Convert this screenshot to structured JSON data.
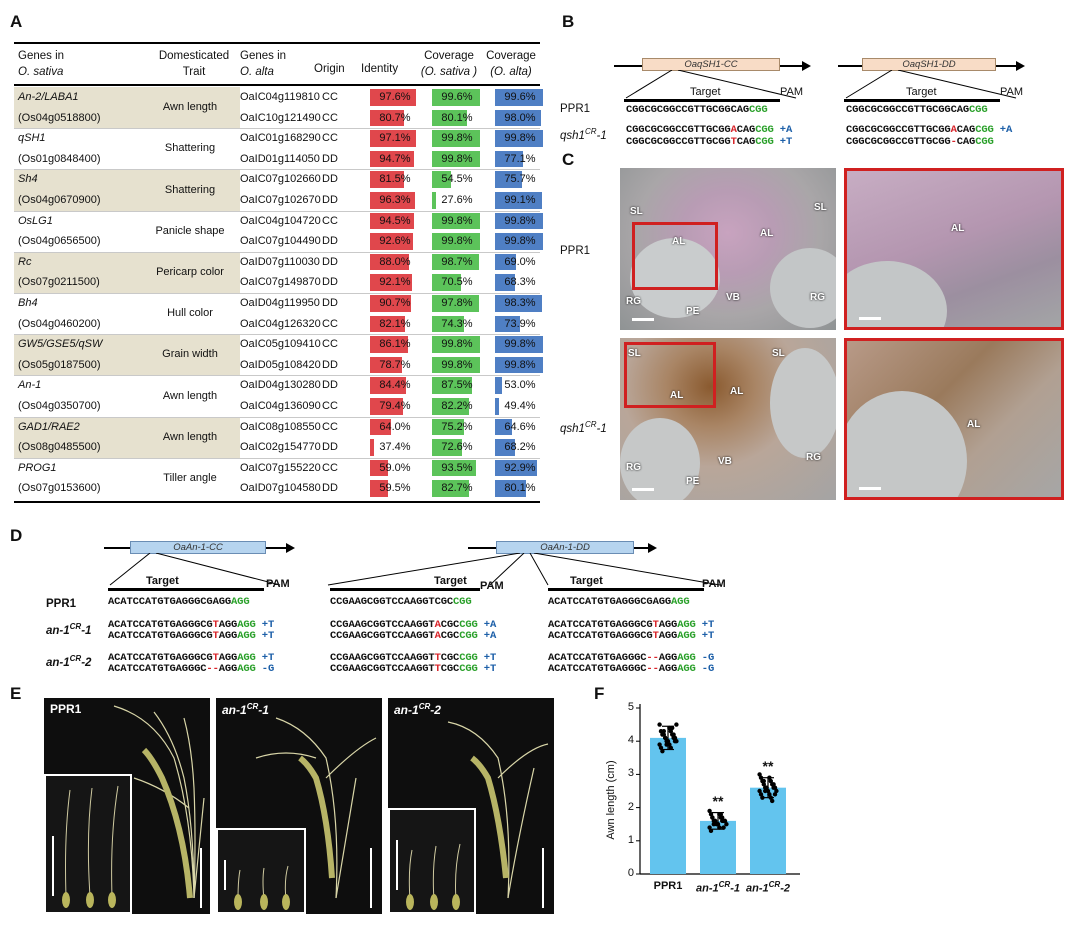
{
  "panels": {
    "A": "A",
    "B": "B",
    "C": "C",
    "D": "D",
    "E": "E",
    "F": "F"
  },
  "tableA": {
    "headers": {
      "genes_sativa_1": "Genes in",
      "genes_sativa_2": "O. sativa",
      "trait_1": "Domesticated",
      "trait_2": "Trait",
      "genes_alta_1": "Genes in",
      "genes_alta_2": "O. alta",
      "origin": "Origin",
      "identity": "Identity",
      "cov_s_1": "Coverage",
      "cov_s_2": "(O. sativa )",
      "cov_a_1": "Coverage",
      "cov_a_2": "(O. alta)"
    },
    "rows": [
      {
        "gene": "An-2/LABA1",
        "gene_italic": true,
        "trait": "Awn length",
        "alta": "OaIC04g119810",
        "origin": "CC",
        "identity": "97.6%",
        "id_val": 97.6,
        "cov_s": "99.6%",
        "cs_val": 99.6,
        "cov_a": "99.6%",
        "ca_val": 99.6,
        "band": true
      },
      {
        "gene": "(Os04g0518800)",
        "gene_italic": false,
        "trait": "",
        "alta": "OaIC10g121490",
        "origin": "CC",
        "identity": "80.7%",
        "id_val": 80.7,
        "cov_s": "80.1%",
        "cs_val": 80.1,
        "cov_a": "98.0%",
        "ca_val": 98.0,
        "band": true
      },
      {
        "gene": "qSH1",
        "gene_italic": true,
        "trait": "Shattering",
        "alta": "OaIC01g168290",
        "origin": "CC",
        "identity": "97.1%",
        "id_val": 97.1,
        "cov_s": "99.8%",
        "cs_val": 99.8,
        "cov_a": "99.8%",
        "ca_val": 99.8,
        "band": false
      },
      {
        "gene": "(Os01g0848400)",
        "gene_italic": false,
        "trait": "",
        "alta": "OaID01g114050",
        "origin": "DD",
        "identity": "94.7%",
        "id_val": 94.7,
        "cov_s": "99.8%",
        "cs_val": 99.8,
        "cov_a": "77.1%",
        "ca_val": 77.1,
        "band": false
      },
      {
        "gene": "Sh4",
        "gene_italic": true,
        "trait": "Shattering",
        "alta": "OaIC07g102660",
        "origin": "DD",
        "identity": "81.5%",
        "id_val": 81.5,
        "cov_s": "54.5%",
        "cs_val": 54.5,
        "cov_a": "75.7%",
        "ca_val": 75.7,
        "band": true
      },
      {
        "gene": "(Os04g0670900)",
        "gene_italic": false,
        "trait": "",
        "alta": "OaIC07g102670",
        "origin": "DD",
        "identity": "96.3%",
        "id_val": 96.3,
        "cov_s": "27.6%",
        "cs_val": 27.6,
        "cov_a": "99.1%",
        "ca_val": 99.1,
        "band": true
      },
      {
        "gene": "OsLG1",
        "gene_italic": true,
        "trait": "Panicle shape",
        "alta": "OaIC04g104720",
        "origin": "CC",
        "identity": "94.5%",
        "id_val": 94.5,
        "cov_s": "99.8%",
        "cs_val": 99.8,
        "cov_a": "99.8%",
        "ca_val": 99.8,
        "band": false
      },
      {
        "gene": "(Os04g0656500)",
        "gene_italic": false,
        "trait": "",
        "alta": "OaIC07g104490",
        "origin": "DD",
        "identity": "92.6%",
        "id_val": 92.6,
        "cov_s": "99.8%",
        "cs_val": 99.8,
        "cov_a": "99.8%",
        "ca_val": 99.8,
        "band": false
      },
      {
        "gene": "Rc",
        "gene_italic": true,
        "trait": "Pericarp color",
        "alta": "OaID07g110030",
        "origin": "DD",
        "identity": "88.0%",
        "id_val": 88.0,
        "cov_s": "98.7%",
        "cs_val": 98.7,
        "cov_a": "69.0%",
        "ca_val": 69.0,
        "band": true
      },
      {
        "gene": "(Os07g0211500)",
        "gene_italic": false,
        "trait": "",
        "alta": "OaIC07g149870",
        "origin": "DD",
        "identity": "92.1%",
        "id_val": 92.1,
        "cov_s": "70.5%",
        "cs_val": 70.5,
        "cov_a": "68.3%",
        "ca_val": 68.3,
        "band": true
      },
      {
        "gene": "Bh4",
        "gene_italic": true,
        "trait": "Hull color",
        "alta": "OaID04g119950",
        "origin": "DD",
        "identity": "90.7%",
        "id_val": 90.7,
        "cov_s": "97.8%",
        "cs_val": 97.8,
        "cov_a": "98.3%",
        "ca_val": 98.3,
        "band": false
      },
      {
        "gene": "(Os04g0460200)",
        "gene_italic": false,
        "trait": "",
        "alta": "OaIC04g126320",
        "origin": "CC",
        "identity": "82.1%",
        "id_val": 82.1,
        "cov_s": "74.3%",
        "cs_val": 74.3,
        "cov_a": "73.9%",
        "ca_val": 73.9,
        "band": false
      },
      {
        "gene": "GW5/GSE5/qSW",
        "gene_italic": true,
        "trait": "Grain width",
        "alta": "OaIC05g109410",
        "origin": "CC",
        "identity": "86.1%",
        "id_val": 86.1,
        "cov_s": "99.8%",
        "cs_val": 99.8,
        "cov_a": "99.8%",
        "ca_val": 99.8,
        "band": true
      },
      {
        "gene": "(Os05g0187500)",
        "gene_italic": false,
        "trait": "",
        "alta": "OaID05g108420",
        "origin": "DD",
        "identity": "78.7%",
        "id_val": 78.7,
        "cov_s": "99.8%",
        "cs_val": 99.8,
        "cov_a": "99.8%",
        "ca_val": 99.8,
        "band": true
      },
      {
        "gene": "An-1",
        "gene_italic": true,
        "trait": "Awn length",
        "alta": "OaID04g130280",
        "origin": "DD",
        "identity": "84.4%",
        "id_val": 84.4,
        "cov_s": "87.5%",
        "cs_val": 87.5,
        "cov_a": "53.0%",
        "ca_val": 53.0,
        "band": false
      },
      {
        "gene": "(Os04g0350700)",
        "gene_italic": false,
        "trait": "",
        "alta": "OaIC04g136090",
        "origin": "CC",
        "identity": "79.4%",
        "id_val": 79.4,
        "cov_s": "82.2%",
        "cs_val": 82.2,
        "cov_a": "49.4%",
        "ca_val": 49.4,
        "band": false
      },
      {
        "gene": "GAD1/RAE2",
        "gene_italic": true,
        "trait": "Awn length",
        "alta": "OaIC08g108550",
        "origin": "CC",
        "identity": "64.0%",
        "id_val": 64.0,
        "cov_s": "75.2%",
        "cs_val": 75.2,
        "cov_a": "64.6%",
        "ca_val": 64.6,
        "band": true
      },
      {
        "gene": "(Os08g0485500)",
        "gene_italic": false,
        "trait": "",
        "alta": "OaIC02g154770",
        "origin": "DD",
        "identity": "37.4%",
        "id_val": 37.4,
        "cov_s": "72.6%",
        "cs_val": 72.6,
        "cov_a": "68.2%",
        "ca_val": 68.2,
        "band": true
      },
      {
        "gene": "PROG1",
        "gene_italic": true,
        "trait": "Tiller angle",
        "alta": "OaIC07g155220",
        "origin": "CC",
        "identity": "59.0%",
        "id_val": 59.0,
        "cov_s": "93.5%",
        "cs_val": 93.5,
        "cov_a": "92.9%",
        "ca_val": 92.9,
        "band": false
      },
      {
        "gene": "(Os07g0153600)",
        "gene_italic": false,
        "trait": "",
        "alta": "OaID07g104580",
        "origin": "DD",
        "identity": "59.5%",
        "id_val": 59.5,
        "cov_s": "82.7%",
        "cs_val": 82.7,
        "cov_a": "80.1%",
        "ca_val": 80.1,
        "band": false
      }
    ],
    "colors": {
      "identity": "#e0474c",
      "cov_sativa": "#5cc35a",
      "cov_alta": "#4f7fc4",
      "band": "#e6e1cf"
    }
  },
  "panelB": {
    "gene_cc": "OaqSH1-CC",
    "gene_dd": "OaqSH1-DD",
    "target": "Target",
    "pam": "PAM",
    "ppr1": "PPR1",
    "mut_prefix": "qsh1",
    "mut_sup": "CR",
    "mut_suffix": "-1",
    "cc": {
      "wt": {
        "a": "CGGCGCGGCCGTTGCGGCAG",
        "pam": "CGG"
      },
      "m1": {
        "a": "CGGCGCGGCCGTTGCGG",
        "ins": "A",
        "b": "CAG",
        "pam": "CGG",
        "note": " +A"
      },
      "m2": {
        "a": "CGGCGCGGCCGTTGCGG",
        "ins": "T",
        "b": "CAG",
        "pam": "CGG",
        "note": " +T"
      }
    },
    "dd": {
      "wt": {
        "a": "CGGCGCGGCCGTTGCGGCAG",
        "pam": "CGG"
      },
      "m1": {
        "a": "CGGCGCGGCCGTTGCGG",
        "ins": "A",
        "b": "CAG",
        "pam": "CGG",
        "note": " +A"
      },
      "m2": {
        "a": "CGGCGCGGCCGTTGCGG",
        "ins": "-",
        "b": "CAG",
        "pam": "CGG",
        "note": ""
      }
    }
  },
  "panelC": {
    "row1": "PPR1",
    "row2_prefix": "qsh1",
    "row2_sup": "CR",
    "row2_suffix": "-1",
    "labels": {
      "SL": "SL",
      "AL": "AL",
      "RG": "RG",
      "PE": "PE",
      "VB": "VB"
    }
  },
  "panelD": {
    "gene_cc": "OaAn-1-CC",
    "gene_dd": "OaAn-1-DD",
    "target": "Target",
    "pam": "PAM",
    "ppr1": "PPR1",
    "m1_prefix": "an-1",
    "m1_sup": "CR",
    "m1_suffix": "-1",
    "m2_prefix": "an-1",
    "m2_sup": "CR",
    "m2_suffix": "-2",
    "col1": {
      "wt": {
        "a": "ACATCCATGTGAGGGCGAGG",
        "pam": "AGG"
      },
      "m1a": {
        "a": "ACATCCATGTGAGGGCG",
        "ins": "T",
        "b": "AGG",
        "pam": "AGG",
        "note": " +T"
      },
      "m1b": {
        "a": "ACATCCATGTGAGGGCG",
        "ins": "T",
        "b": "AGG",
        "pam": "AGG",
        "note": " +T"
      },
      "m2a": {
        "a": "ACATCCATGTGAGGGCG",
        "ins": "T",
        "b": "AGG",
        "pam": "AGG",
        "note": " +T"
      },
      "m2b": {
        "a": "ACATCCATGTGAGGGC",
        "ins": "--",
        "b": "AGG",
        "pam": "AGG",
        "note": " -G"
      }
    },
    "col2": {
      "wt": {
        "a": "CCGAAGCGGTCCAAGGTCGC",
        "pam": "CGG"
      },
      "m1a": {
        "a": "CCGAAGCGGTCCAAGGT",
        "ins": "A",
        "b": "CGC",
        "pam": "CGG",
        "note": " +A"
      },
      "m1b": {
        "a": "CCGAAGCGGTCCAAGGT",
        "ins": "A",
        "b": "CGC",
        "pam": "CGG",
        "note": " +A"
      },
      "m2a": {
        "a": "CCGAAGCGGTCCAAGGT",
        "ins": "T",
        "b": "CGC",
        "pam": "CGG",
        "note": " +T"
      },
      "m2b": {
        "a": "CCGAAGCGGTCCAAGGT",
        "ins": "T",
        "b": "CGC",
        "pam": "CGG",
        "note": " +T"
      }
    },
    "col3": {
      "wt": {
        "a": "ACATCCATGTGAGGGCGAGG",
        "pam": "AGG"
      },
      "m1a": {
        "a": "ACATCCATGTGAGGGCG",
        "ins": "T",
        "b": "AGG",
        "pam": "AGG",
        "note": " +T"
      },
      "m1b": {
        "a": "ACATCCATGTGAGGGCG",
        "ins": "T",
        "b": "AGG",
        "pam": "AGG",
        "note": " +T"
      },
      "m2a": {
        "a": "ACATCCATGTGAGGGC",
        "ins": "--",
        "b": "AGG",
        "pam": "AGG",
        "note": " -G"
      },
      "m2b": {
        "a": "ACATCCATGTGAGGGC",
        "ins": "--",
        "b": "AGG",
        "pam": "AGG",
        "note": " -G"
      }
    }
  },
  "panelE": {
    "p1": "PPR1",
    "p2_prefix": "an-1",
    "p2_sup": "CR",
    "p2_suffix": "-1",
    "p3_prefix": "an-1",
    "p3_sup": "CR",
    "p3_suffix": "-2"
  },
  "chart_data": {
    "type": "bar",
    "categories": [
      "PPR1",
      "an-1CR-1",
      "an-1CR-2"
    ],
    "values": [
      4.1,
      1.6,
      2.6
    ],
    "errors": [
      0.35,
      0.25,
      0.3
    ],
    "significance": [
      "",
      "**",
      "**"
    ],
    "ylabel": "Awn length (cm)",
    "ylim": [
      0,
      5
    ],
    "yticks": [
      0,
      1,
      2,
      3,
      4,
      5
    ],
    "bar_color": "#63c4ee",
    "points": [
      [
        4.5,
        4.4,
        4.3,
        4.3,
        4.2,
        4.2,
        4.2,
        4.1,
        4.1,
        4.1,
        4.0,
        4.0,
        4.0,
        3.9,
        3.9,
        3.8,
        3.8,
        3.7,
        4.4,
        4.3,
        4.2,
        4.1,
        4.0,
        3.9,
        4.5
      ],
      [
        1.9,
        1.8,
        1.8,
        1.7,
        1.7,
        1.7,
        1.6,
        1.6,
        1.6,
        1.6,
        1.5,
        1.5,
        1.5,
        1.4,
        1.4,
        1.3,
        1.8,
        1.7,
        1.6,
        1.5,
        1.4
      ],
      [
        3.0,
        2.9,
        2.9,
        2.8,
        2.8,
        2.7,
        2.7,
        2.7,
        2.6,
        2.6,
        2.6,
        2.5,
        2.5,
        2.5,
        2.4,
        2.4,
        2.3,
        2.3,
        2.2,
        2.8,
        2.6,
        2.5,
        2.4
      ]
    ],
    "tick_labels": [
      {
        "prefix": "PPR1",
        "sup": "",
        "suffix": ""
      },
      {
        "prefix": "an-1",
        "sup": "CR",
        "suffix": "-1"
      },
      {
        "prefix": "an-1",
        "sup": "CR",
        "suffix": "-2"
      }
    ]
  }
}
